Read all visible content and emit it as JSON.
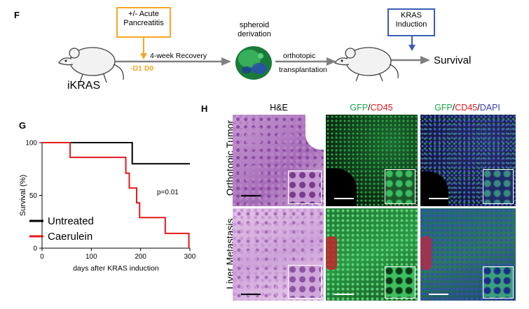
{
  "panels": {
    "f": "F",
    "g": "G",
    "h": "H"
  },
  "scheme": {
    "pancreatitis_box": "+/- Acute\nPancreatitis",
    "pancreatitis_line1": "+/- Acute",
    "pancreatitis_line2": "Pancreatitis",
    "days": "-D1 D0",
    "recovery": "4-week Recovery",
    "spheroid_line1": "spheroid",
    "spheroid_line2": "derivation",
    "orthotopic_line1": "orthotopic",
    "orthotopic_line2": "transplantation",
    "kras_line1": "KRAS",
    "kras_line2": "Induction",
    "mouse_label": "iKRAS",
    "survival": "Survival",
    "colors": {
      "pancreatitis": "#f5a623",
      "kras": "#3a5db5",
      "arrow": "#808080"
    }
  },
  "chart_data": {
    "type": "line",
    "subtype": "kaplan-meier",
    "xlabel": "days after KRAS induction",
    "ylabel": "Survival (%)",
    "xlim": [
      0,
      300
    ],
    "ylim": [
      0,
      100
    ],
    "xticks": [
      0,
      100,
      200,
      300
    ],
    "yticks": [
      0,
      50,
      100
    ],
    "annotation": "p=0.01",
    "series": [
      {
        "name": "Untreated",
        "color": "#000000",
        "x": [
          0,
          183,
          183,
          300
        ],
        "y": [
          100,
          100,
          80,
          80
        ]
      },
      {
        "name": "Caerulein",
        "color": "#e41a1c",
        "x": [
          0,
          57,
          57,
          170,
          170,
          177,
          177,
          192,
          192,
          198,
          198,
          203,
          203,
          250,
          250,
          298,
          298
        ],
        "y": [
          100,
          100,
          86,
          86,
          71,
          71,
          57,
          57,
          43,
          43,
          29,
          29,
          29,
          29,
          14,
          14,
          0
        ]
      }
    ],
    "legend_position": "bottom-left"
  },
  "histology": {
    "col_headers": {
      "he": "H&E",
      "gfp": "GFP",
      "slash": "/",
      "cd45": "CD45",
      "dapi": "DAPI"
    },
    "rows": [
      "Orthotopic Tumor",
      "Liver Metastasis"
    ],
    "colors": {
      "gfp": "#19a64a",
      "cd45": "#e41a1c",
      "dapi": "#3a3ab0"
    }
  }
}
